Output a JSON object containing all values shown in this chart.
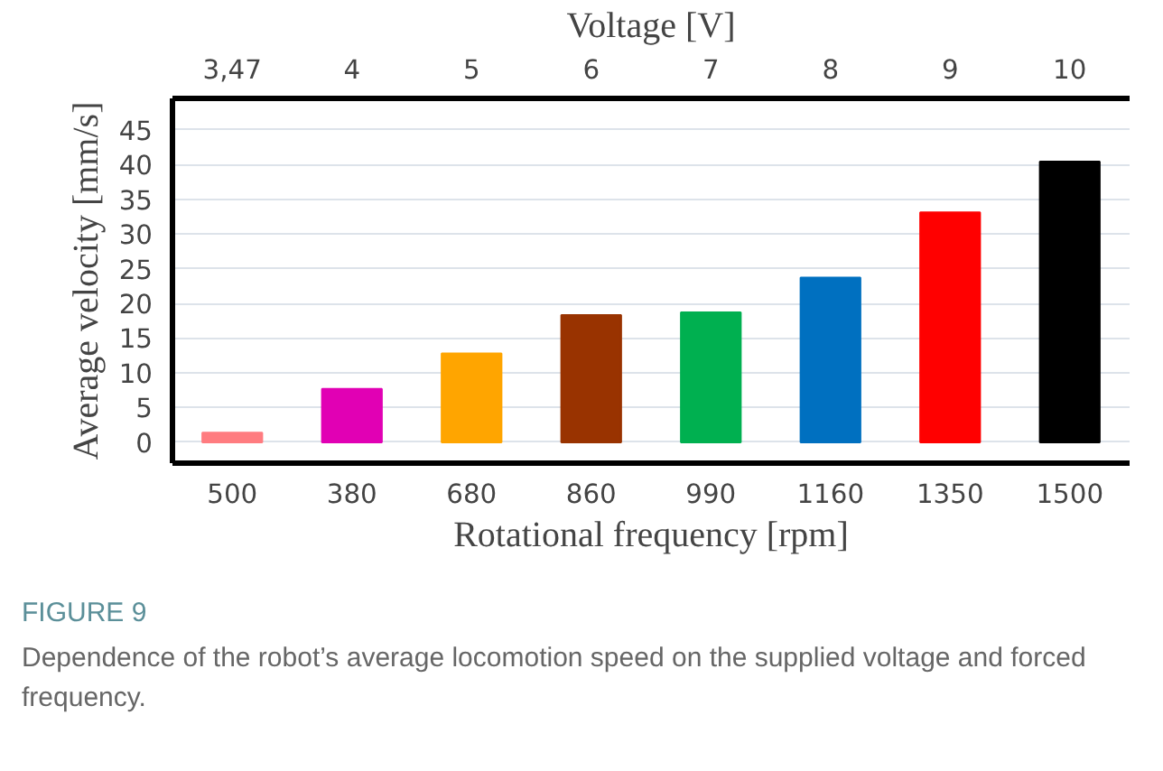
{
  "chart_data": {
    "type": "bar",
    "categories": [
      "500",
      "380",
      "680",
      "860",
      "990",
      "1160",
      "1350",
      "1500"
    ],
    "values": [
      1.4,
      7.7,
      12.8,
      18.3,
      18.7,
      23.7,
      33.1,
      40.4
    ],
    "colors": [
      "#ff7c80",
      "#e100b4",
      "#ffa500",
      "#993300",
      "#00b050",
      "#0070c0",
      "#ff0000",
      "#000000"
    ],
    "xlabel": "Rotational frequency [rpm]",
    "x2label": "Voltage [V]",
    "ylabel": "Average velocity [mm/s]",
    "ylim": [
      -3,
      49.5
    ],
    "yticks": [
      0,
      5,
      10,
      15,
      20,
      25,
      30,
      35,
      40,
      45
    ],
    "grid": "y",
    "annotations": [
      "3,47",
      "4",
      "5",
      "6",
      "7",
      "8",
      "9",
      "10",
      "FIGURE 9",
      "Dependence of the robot’s average locomotion speed on the supplied voltage and forced frequency."
    ]
  }
}
